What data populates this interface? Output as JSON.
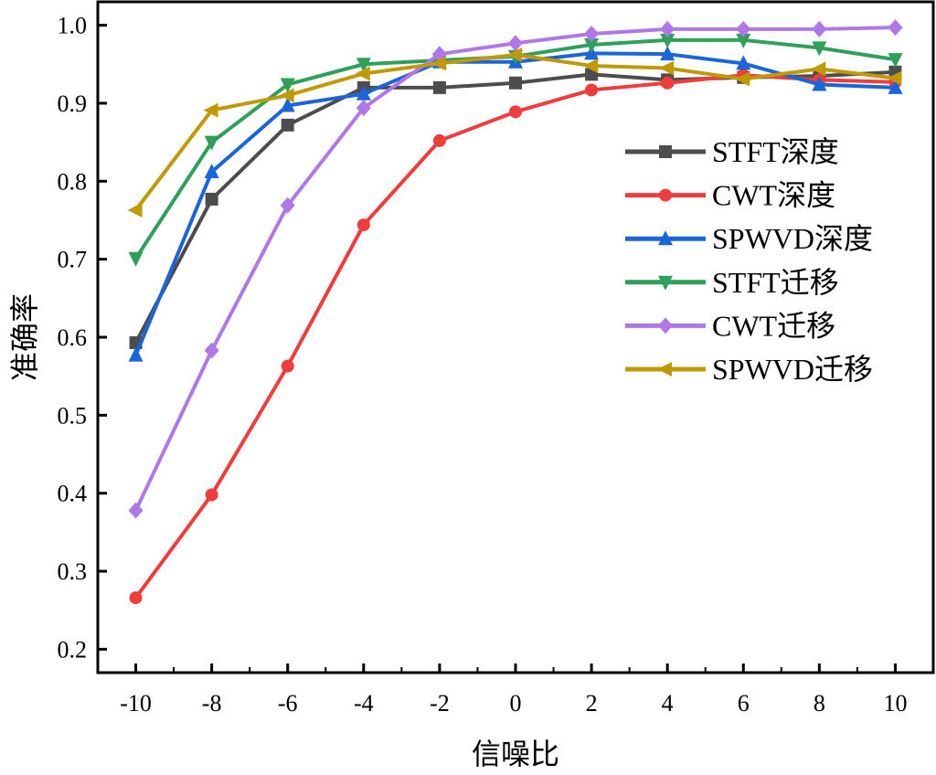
{
  "chart_data": {
    "type": "line",
    "title": "",
    "xlabel": "信噪比",
    "ylabel": "准确率",
    "x": [
      -10,
      -8,
      -6,
      -4,
      -2,
      0,
      2,
      4,
      6,
      8,
      10
    ],
    "xlim": [
      -11,
      11
    ],
    "ylim": [
      0.17,
      1.03
    ],
    "xticks": [
      -10,
      -8,
      -6,
      -4,
      -2,
      0,
      2,
      4,
      6,
      8,
      10
    ],
    "yticks": [
      0.2,
      0.3,
      0.4,
      0.5,
      0.6,
      0.7,
      0.8,
      0.9,
      1.0
    ],
    "grid": false,
    "legend_position": "right",
    "series": [
      {
        "name": "STFT深度",
        "color": "#4d4d4d",
        "marker": "square",
        "values": [
          0.593,
          0.777,
          0.872,
          0.92,
          0.92,
          0.926,
          0.937,
          0.93,
          0.933,
          0.935,
          0.94
        ]
      },
      {
        "name": "CWT深度",
        "color": "#f23c3c",
        "marker": "circle",
        "values": [
          0.266,
          0.398,
          0.563,
          0.744,
          0.852,
          0.889,
          0.917,
          0.926,
          0.936,
          0.93,
          0.927
        ]
      },
      {
        "name": "SPWVD深度",
        "color": "#1a66d9",
        "marker": "triangle-up",
        "values": [
          0.577,
          0.812,
          0.897,
          0.912,
          0.953,
          0.953,
          0.964,
          0.963,
          0.951,
          0.924,
          0.92
        ]
      },
      {
        "name": "STFT迁移",
        "color": "#2ea05a",
        "marker": "triangle-down",
        "values": [
          0.701,
          0.85,
          0.924,
          0.95,
          0.955,
          0.96,
          0.975,
          0.981,
          0.981,
          0.971,
          0.956
        ]
      },
      {
        "name": "CWT迁移",
        "color": "#b077e6",
        "marker": "diamond",
        "values": [
          0.378,
          0.583,
          0.769,
          0.894,
          0.963,
          0.977,
          0.989,
          0.995,
          0.995,
          0.995,
          0.997
        ]
      },
      {
        "name": "SPWVD迁移",
        "color": "#c09a05",
        "marker": "triangle-left",
        "values": [
          0.763,
          0.891,
          0.91,
          0.938,
          0.951,
          0.962,
          0.948,
          0.945,
          0.931,
          0.944,
          0.932
        ]
      }
    ]
  }
}
